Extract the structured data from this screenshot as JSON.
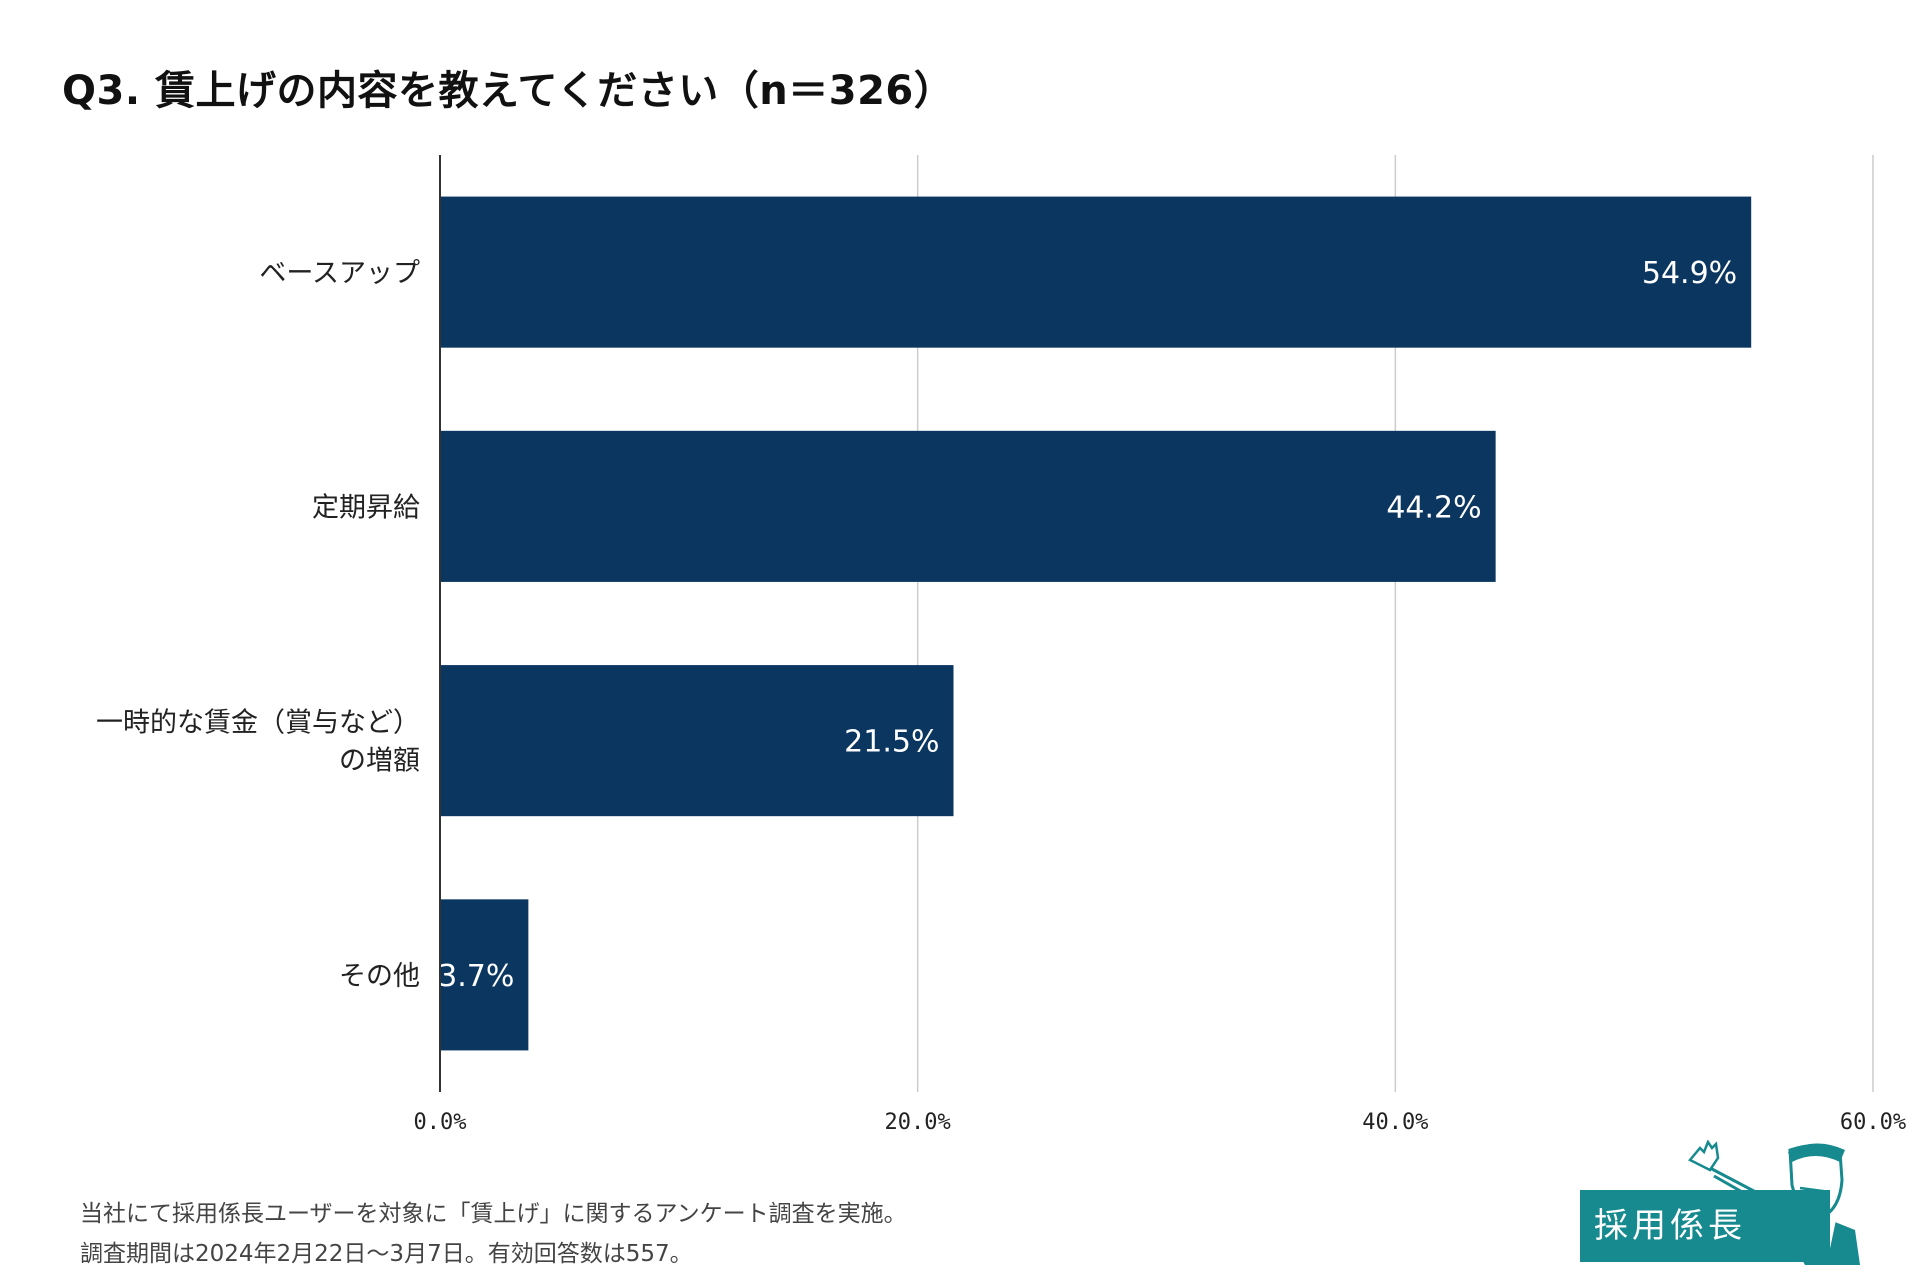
{
  "chart_data": {
    "type": "bar",
    "orientation": "horizontal",
    "title": "Q3. 賃上げの内容を教えてください（n＝326）",
    "categories": [
      [
        "ベースアップ"
      ],
      [
        "定期昇給"
      ],
      [
        "一時的な賃金（賞与など）",
        "の増額"
      ],
      [
        "その他"
      ]
    ],
    "values": [
      54.9,
      44.2,
      21.5,
      3.7
    ],
    "value_labels": [
      "54.9%",
      "44.2%",
      "21.5%",
      "3.7%"
    ],
    "xlim": [
      0,
      60
    ],
    "x_ticks": [
      0,
      20,
      40,
      60
    ],
    "x_tick_labels": [
      "0.0%",
      "20.0%",
      "40.0%",
      "60.0%"
    ],
    "xlabel": "",
    "ylabel": "",
    "grid": true,
    "legend": "none",
    "bar_color": "#0b3660"
  },
  "footnote": {
    "line1": "当社にて採用係長ユーザーを対象に「賃上げ」に関するアンケート調査を実施。",
    "line2": "調査期間は2024年2月22日〜3月7日。有効回答数は557。"
  },
  "logo": {
    "text": "採用係長",
    "color": "#168a8e"
  }
}
